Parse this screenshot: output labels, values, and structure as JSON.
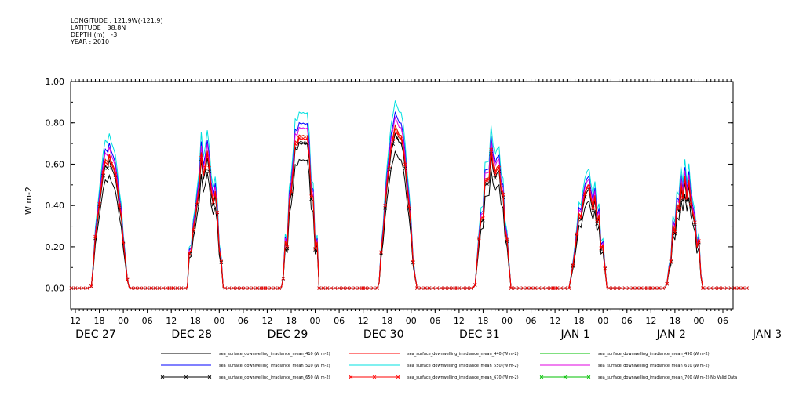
{
  "header": {
    "longitude": "LONGITUDE : 121.9W(-121.9)",
    "latitude": "LATITUDE : 38.8N",
    "depth": "DEPTH (m) : -3",
    "year": "YEAR : 2010"
  },
  "chart_data": {
    "type": "line",
    "ylabel": "W m-2",
    "ylim": [
      -0.1,
      1.0
    ],
    "yticks": [
      "0.00",
      "0.20",
      "0.40",
      "0.60",
      "0.80",
      "1.00"
    ],
    "x_hour_ticks": [
      "12",
      "18",
      "00",
      "06",
      "12",
      "18",
      "00",
      "06",
      "12",
      "18",
      "00",
      "06",
      "12",
      "18",
      "00",
      "06",
      "12",
      "18",
      "00",
      "06",
      "12",
      "18",
      "00",
      "06",
      "12",
      "18",
      "00",
      "06"
    ],
    "x_date_labels": [
      "DEC 27",
      "DEC 28",
      "DEC 29",
      "DEC 30",
      "DEC 31",
      "JAN 1",
      "JAN 2",
      "JAN 3"
    ],
    "grid": false,
    "day_peaks_red": [
      0.64,
      0.62,
      0.76,
      0.78,
      0.62,
      0.48,
      0.5
    ],
    "series": [
      {
        "name": "sea_surface_downwelling_irradiance_mean_410 (W m-2)",
        "color": "#000000",
        "marker": "",
        "peak_scale": 0.84
      },
      {
        "name": "sea_surface_downwelling_irradiance_mean_440 (W m-2)",
        "color": "#ff0000",
        "marker": "",
        "peak_scale": 1.0
      },
      {
        "name": "sea_surface_downwelling_irradiance_mean_490 (W m-2)",
        "color": "#00c000",
        "marker": "",
        "peak_scale": 1.0
      },
      {
        "name": "sea_surface_downwelling_irradiance_mean_510 (W m-2)",
        "color": "#0000ff",
        "marker": "",
        "peak_scale": 1.08
      },
      {
        "name": "sea_surface_downwelling_irradiance_mean_550 (W m-2)",
        "color": "#00e0e0",
        "marker": "",
        "peak_scale": 1.15
      },
      {
        "name": "sea_surface_downwelling_irradiance_mean_610 (W m-2)",
        "color": "#e000e0",
        "marker": "",
        "peak_scale": 1.05
      },
      {
        "name": "sea_surface_downwelling_irradiance_mean_650 (W m-2)",
        "color": "#000000",
        "marker": "x",
        "peak_scale": 0.95
      },
      {
        "name": "sea_surface_downwelling_irradiance_mean_670 (W m-2)",
        "color": "#ff0000",
        "marker": "x",
        "peak_scale": 0.98
      },
      {
        "name": "sea_surface_downwelling_irradiance_mean_700 (W m-2) No Valid Data",
        "color": "#00c000",
        "marker": "x",
        "peak_scale": 0
      }
    ]
  }
}
